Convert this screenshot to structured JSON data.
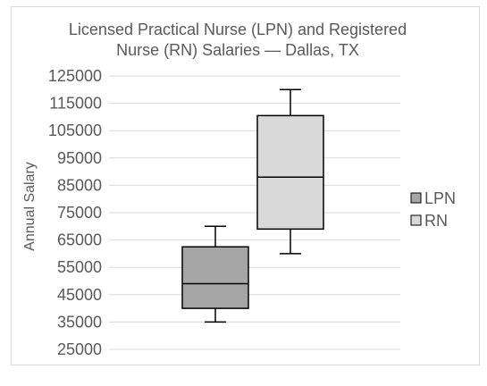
{
  "chart_data": {
    "type": "boxplot",
    "title_lines": [
      "Licensed Practical Nurse (LPN) and Registered",
      "Nurse (RN) Salaries — Dallas, TX"
    ],
    "ylabel": "Annual Salary",
    "xlabel": "",
    "ylim": [
      25000,
      125000
    ],
    "yticks": [
      25000,
      35000,
      45000,
      55000,
      65000,
      75000,
      85000,
      95000,
      105000,
      115000,
      125000
    ],
    "grid": true,
    "legend_position": "right",
    "series": [
      {
        "name": "LPN",
        "color": "#a6a6a6",
        "min": 35000,
        "q1": 40000,
        "median": 49000,
        "q3": 62500,
        "max": 70000
      },
      {
        "name": "RN",
        "color": "#d9d9d9",
        "min": 60000,
        "q1": 69000,
        "median": 88000,
        "q3": 110500,
        "max": 120000
      }
    ]
  }
}
